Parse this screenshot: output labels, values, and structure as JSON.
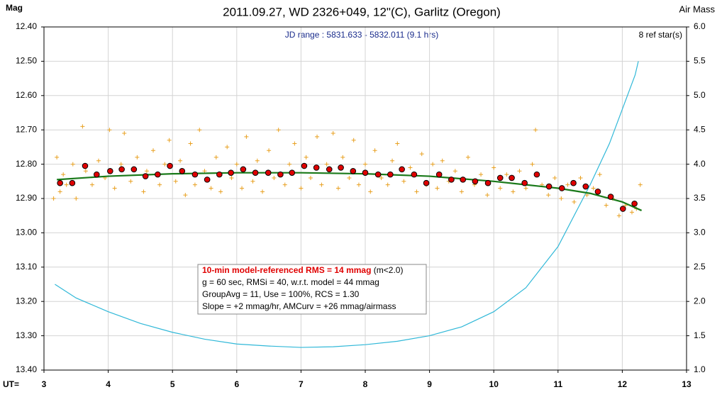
{
  "chart_data": {
    "type": "scatter",
    "title": "2011.09.27, WD 2326+049, 12\"(C), Garlitz (Oregon)",
    "ylabel": "Mag",
    "y2label": "Air Mass",
    "xlabel": "UT=",
    "subtitle": "JD range : 5831.633 - 5832.011 (9.1 hrs)",
    "annotation": "8 ref star(s)",
    "stats": {
      "headline": "10-min model-referenced RMS = 14 mmag",
      "headline_note": "(m<2.0)",
      "lines": [
        "g = 60 sec, RMSi = 40, w.r.t. model = 44 mmag",
        "GroupAvg = 11, Use = 100%, RCS = 1.30",
        "Slope = +2 mmag/hr, AMCurv = +26 mmag/airmass"
      ]
    },
    "grid": true,
    "xlim": [
      3,
      13
    ],
    "xticks": [
      3,
      4,
      5,
      6,
      7,
      8,
      9,
      10,
      11,
      12,
      13
    ],
    "ylim": [
      13.4,
      12.4
    ],
    "yticks": [
      {
        "value": 12.4,
        "label": "12.40"
      },
      {
        "value": 12.5,
        "label": "12.50"
      },
      {
        "value": 12.6,
        "label": "12.60"
      },
      {
        "value": 12.7,
        "label": "12.70"
      },
      {
        "value": 12.8,
        "label": "12.80"
      },
      {
        "value": 12.9,
        "label": "12.90"
      },
      {
        "value": 13.0,
        "label": "13.00"
      },
      {
        "value": 13.1,
        "label": "13.10"
      },
      {
        "value": 13.2,
        "label": "13.20"
      },
      {
        "value": 13.3,
        "label": "13.30"
      },
      {
        "value": 13.4,
        "label": "13.40"
      }
    ],
    "y2lim": [
      1.0,
      6.0
    ],
    "y2ticks": [
      {
        "value": 1,
        "label": "1.0"
      },
      {
        "value": 1.5,
        "label": "1.5"
      },
      {
        "value": 2,
        "label": "2.0"
      },
      {
        "value": 2.5,
        "label": "2.5"
      },
      {
        "value": 3,
        "label": "3.0"
      },
      {
        "value": 3.5,
        "label": "3.5"
      },
      {
        "value": 4,
        "label": "4.0"
      },
      {
        "value": 4.5,
        "label": "4.5"
      },
      {
        "value": 5,
        "label": "5.0"
      },
      {
        "value": 5.5,
        "label": "5.5"
      },
      {
        "value": 6,
        "label": "6.0"
      }
    ],
    "series": [
      {
        "marker": "plus",
        "color": "#e8a020",
        "x": [
          3.15,
          3.2,
          3.25,
          3.3,
          3.35,
          3.45,
          3.5,
          3.6,
          3.65,
          3.75,
          3.85,
          3.95,
          4.02,
          4.1,
          4.2,
          4.25,
          4.35,
          4.45,
          4.55,
          4.6,
          4.7,
          4.8,
          4.88,
          4.95,
          5.05,
          5.12,
          5.2,
          5.28,
          5.35,
          5.42,
          5.5,
          5.6,
          5.68,
          5.75,
          5.85,
          5.92,
          6.0,
          6.08,
          6.15,
          6.25,
          6.32,
          6.4,
          6.5,
          6.58,
          6.65,
          6.75,
          6.82,
          6.9,
          7.0,
          7.08,
          7.15,
          7.25,
          7.32,
          7.4,
          7.5,
          7.58,
          7.65,
          7.75,
          7.82,
          7.9,
          8.0,
          8.08,
          8.15,
          8.25,
          8.35,
          8.42,
          8.5,
          8.6,
          8.7,
          8.8,
          8.88,
          8.95,
          9.05,
          9.12,
          9.2,
          9.3,
          9.4,
          9.5,
          9.6,
          9.7,
          9.8,
          9.9,
          10.0,
          10.1,
          10.2,
          10.3,
          10.4,
          10.5,
          10.6,
          10.65,
          10.75,
          10.85,
          10.95,
          11.05,
          11.15,
          11.25,
          11.35,
          11.45,
          11.55,
          11.65,
          11.75,
          11.85,
          11.95,
          12.05,
          12.15,
          12.22,
          12.28
        ],
        "values": [
          12.9,
          12.78,
          12.88,
          12.83,
          12.86,
          12.8,
          12.9,
          12.69,
          12.82,
          12.86,
          12.79,
          12.84,
          12.7,
          12.87,
          12.8,
          12.71,
          12.85,
          12.78,
          12.88,
          12.82,
          12.76,
          12.86,
          12.8,
          12.73,
          12.85,
          12.79,
          12.89,
          12.74,
          12.86,
          12.7,
          12.82,
          12.87,
          12.78,
          12.88,
          12.75,
          12.84,
          12.8,
          12.87,
          12.72,
          12.85,
          12.79,
          12.88,
          12.76,
          12.84,
          12.7,
          12.86,
          12.8,
          12.74,
          12.87,
          12.78,
          12.84,
          12.72,
          12.86,
          12.8,
          12.71,
          12.87,
          12.78,
          12.84,
          12.73,
          12.86,
          12.8,
          12.88,
          12.76,
          12.84,
          12.86,
          12.79,
          12.74,
          12.85,
          12.81,
          12.88,
          12.77,
          12.86,
          12.8,
          12.87,
          12.79,
          12.85,
          12.82,
          12.88,
          12.78,
          12.86,
          12.83,
          12.89,
          12.81,
          12.87,
          12.83,
          12.88,
          12.82,
          12.87,
          12.8,
          12.7,
          12.86,
          12.89,
          12.84,
          12.9,
          12.86,
          12.91,
          12.84,
          12.89,
          12.87,
          12.83,
          12.92,
          12.9,
          12.95,
          12.92,
          12.94,
          12.93,
          12.86
        ]
      },
      {
        "marker": "circle",
        "color": "#e00000",
        "x": [
          3.25,
          3.44,
          3.64,
          3.82,
          4.03,
          4.21,
          4.4,
          4.58,
          4.77,
          4.96,
          5.15,
          5.35,
          5.54,
          5.73,
          5.91,
          6.1,
          6.29,
          6.49,
          6.68,
          6.86,
          7.05,
          7.24,
          7.44,
          7.62,
          7.81,
          8.0,
          8.2,
          8.39,
          8.57,
          8.76,
          8.95,
          9.15,
          9.34,
          9.52,
          9.71,
          9.91,
          10.1,
          10.28,
          10.48,
          10.67,
          10.86,
          11.06,
          11.24,
          11.43,
          11.62,
          11.82,
          12.01,
          12.19
        ],
        "values": [
          12.855,
          12.855,
          12.805,
          12.83,
          12.82,
          12.815,
          12.815,
          12.835,
          12.83,
          12.805,
          12.82,
          12.83,
          12.845,
          12.83,
          12.825,
          12.815,
          12.825,
          12.825,
          12.83,
          12.825,
          12.805,
          12.81,
          12.815,
          12.81,
          12.82,
          12.825,
          12.83,
          12.83,
          12.815,
          12.83,
          12.855,
          12.83,
          12.845,
          12.845,
          12.85,
          12.855,
          12.84,
          12.84,
          12.855,
          12.83,
          12.865,
          12.87,
          12.855,
          12.865,
          12.88,
          12.895,
          12.93,
          12.915
        ]
      },
      {
        "marker": "line",
        "color": "#1a7a1a",
        "x": [
          3.2,
          4,
          5,
          6,
          7,
          8,
          9,
          10,
          10.5,
          11,
          11.5,
          12,
          12.3
        ],
        "values": [
          12.845,
          12.835,
          12.828,
          12.825,
          12.825,
          12.828,
          12.835,
          12.85,
          12.86,
          12.87,
          12.885,
          12.91,
          12.935
        ]
      },
      {
        "marker": "line",
        "color": "#30b8d8",
        "axis": "y2",
        "x": [
          3.17,
          3.5,
          4,
          4.5,
          5,
          5.5,
          6,
          6.5,
          7,
          7.5,
          8,
          8.5,
          9,
          9.5,
          10,
          10.5,
          11,
          11.5,
          11.8,
          12,
          12.2,
          12.25
        ],
        "values": [
          2.25,
          2.05,
          1.85,
          1.68,
          1.55,
          1.45,
          1.38,
          1.35,
          1.33,
          1.34,
          1.37,
          1.42,
          1.5,
          1.63,
          1.85,
          2.2,
          2.8,
          3.7,
          4.3,
          4.8,
          5.3,
          5.5
        ]
      }
    ]
  }
}
